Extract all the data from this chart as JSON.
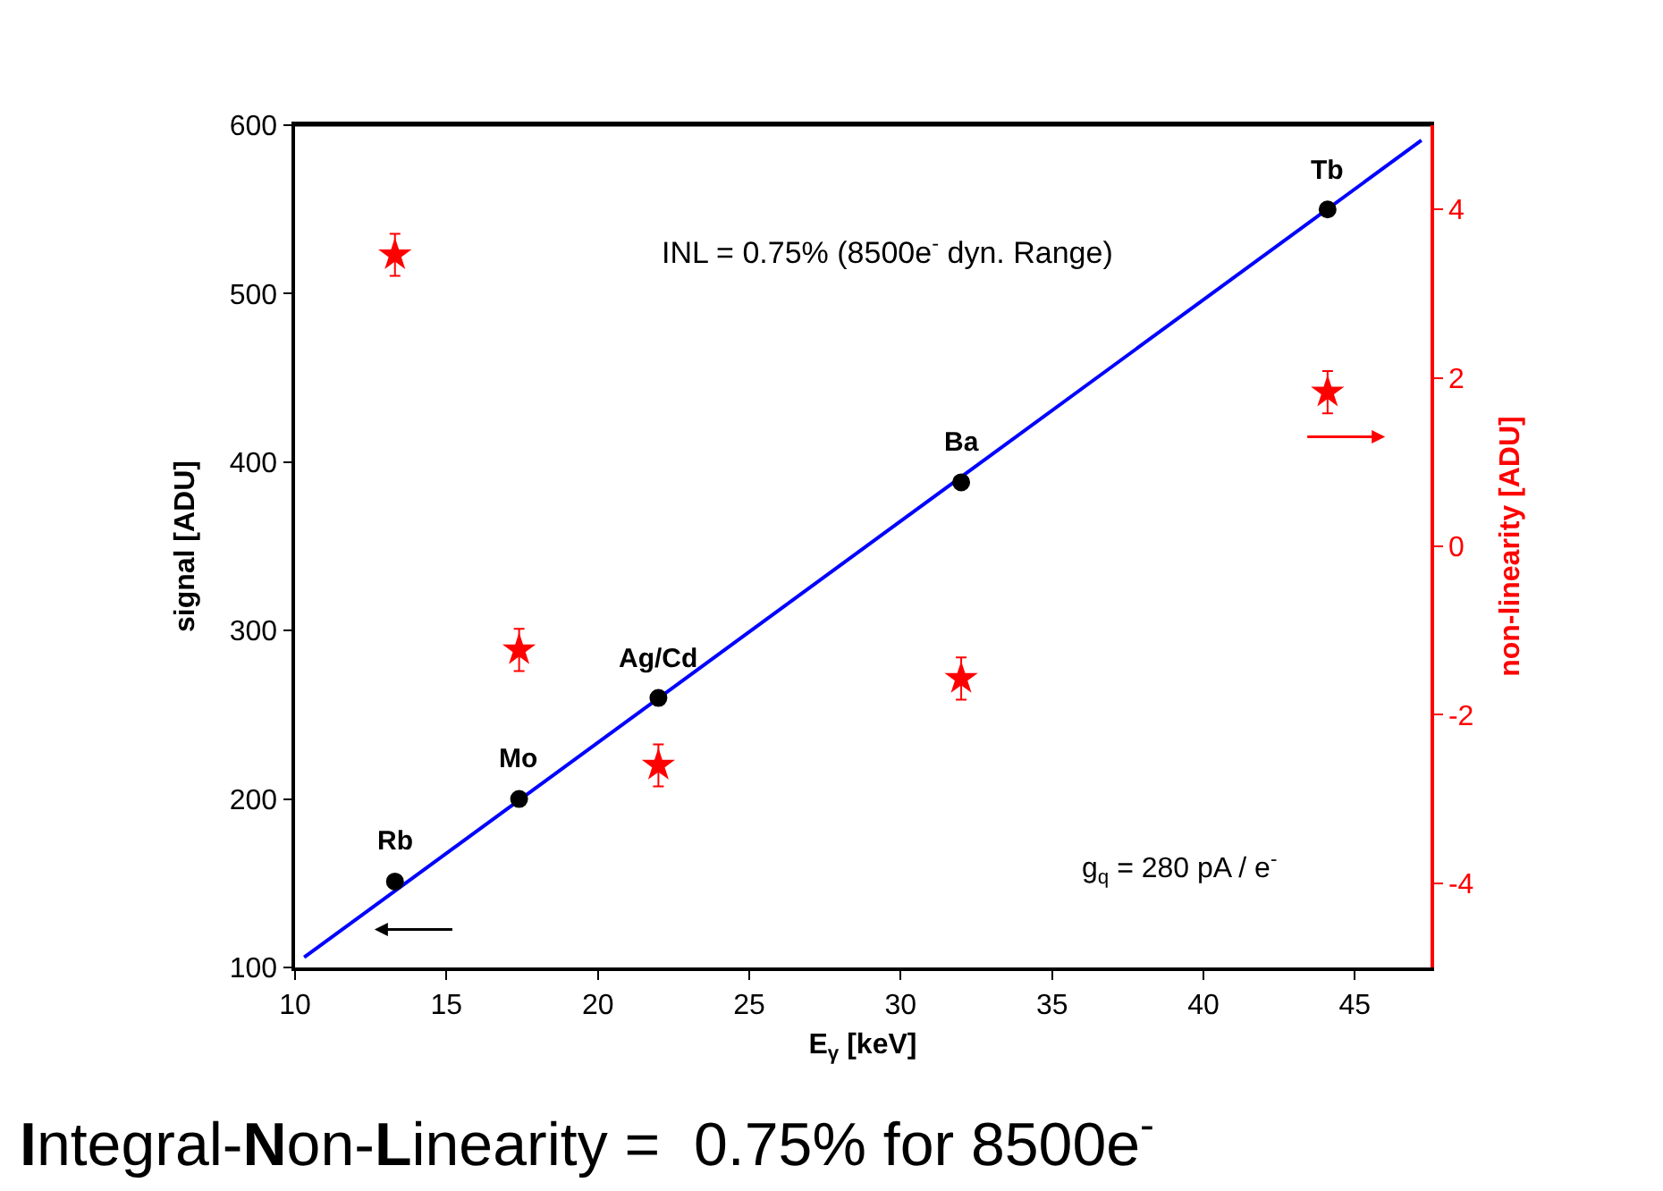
{
  "chart_data": {
    "type": "scatter",
    "xlabel": "E$_{γ}$ [keV]",
    "ylabel": "signal [ADU]",
    "y2label": "non-linearity [ADU]",
    "xlim": [
      10,
      47.5
    ],
    "xticks": [
      10,
      15,
      20,
      25,
      30,
      35,
      40,
      45
    ],
    "ylim": [
      100,
      600
    ],
    "yticks": [
      100,
      200,
      300,
      400,
      500,
      600
    ],
    "y2lim": [
      -5,
      5
    ],
    "y2ticks": [
      -4,
      -2,
      0,
      2,
      4
    ],
    "grid": false,
    "legend": false,
    "series": [
      {
        "type": "line",
        "color": "#0000ff",
        "marker": "none",
        "line_style": "solid",
        "x": [
          10.3,
          47.2
        ],
        "values": [
          106,
          591
        ]
      },
      {
        "color": "#000000",
        "marker": "circle",
        "x": [
          13.3,
          17.4,
          22.0,
          32.0,
          44.1
        ],
        "values": [
          151,
          200,
          260,
          388,
          550
        ]
      },
      {
        "axis": "y2",
        "color": "#ff0000",
        "marker": "star",
        "x": [
          13.3,
          17.4,
          22.0,
          32.0,
          44.1
        ],
        "values": [
          3.46,
          -1.23,
          -2.6,
          -1.57,
          1.83
        ],
        "errors": [
          0.25,
          0.25,
          0.25,
          0.25,
          0.25
        ]
      }
    ],
    "annotations": [
      {
        "text": "Rb",
        "x": 13.3,
        "y": 151
      },
      {
        "text": "Mo",
        "x": 17.4,
        "y": 200
      },
      {
        "text": "Ag/Cd",
        "x": 22.0,
        "y": 260
      },
      {
        "text": "Ba",
        "x": 32.0,
        "y": 388
      },
      {
        "text": "Tb",
        "x": 44.1,
        "y": 550
      },
      "INL = 0.75% (8500e$^{-}$ dyn. Range)",
      "g$_{q}$ = 280 pA / e$^{-}$",
      "Integral-Non-Linearity =  0.75% for 8500e$^{-}$"
    ]
  }
}
